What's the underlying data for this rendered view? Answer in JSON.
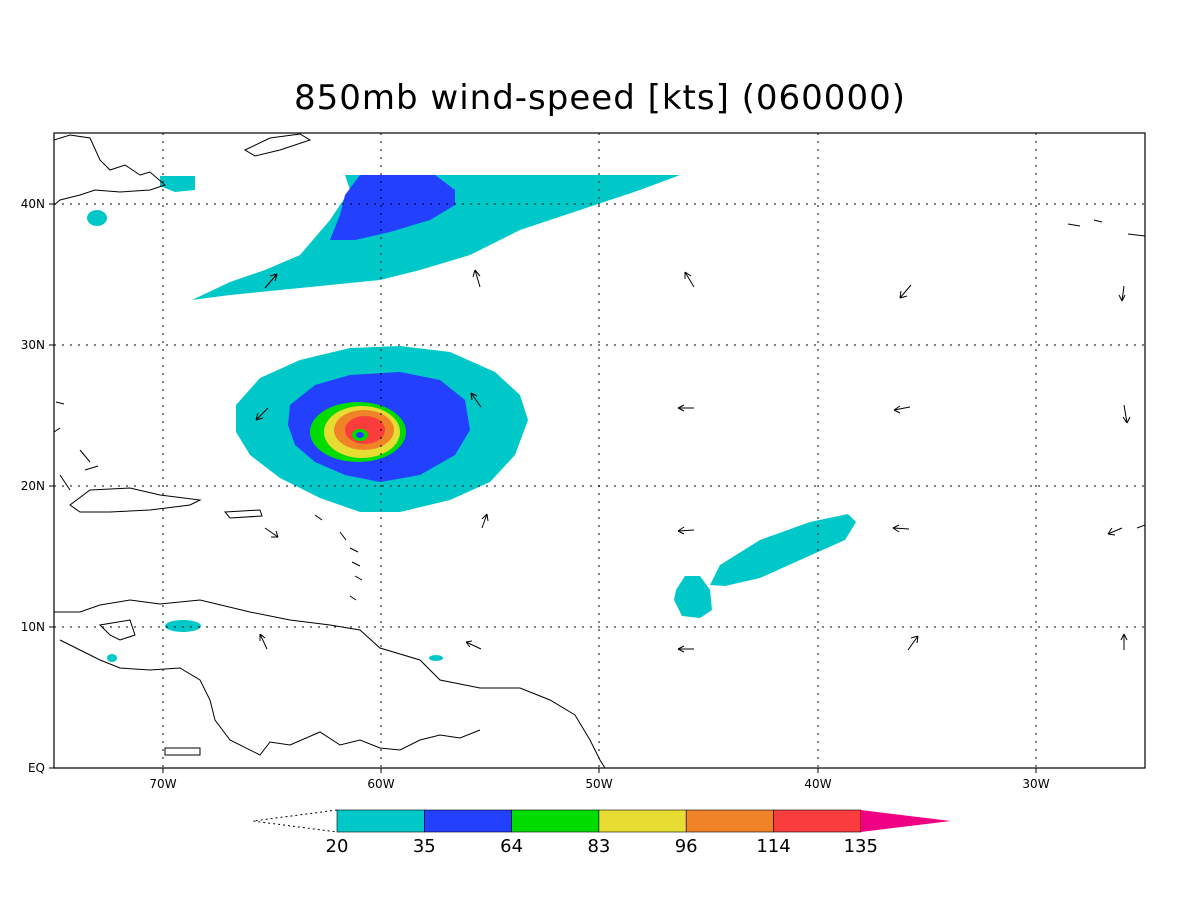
{
  "title": "850mb wind-speed [kts] (060000)",
  "axes": {
    "x_ticks": [
      "70W",
      "60W",
      "50W",
      "40W",
      "30W"
    ],
    "y_ticks": [
      "EQ",
      "10N",
      "20N",
      "30N",
      "40N"
    ]
  },
  "colorbar": {
    "labels": [
      "20",
      "35",
      "64",
      "83",
      "96",
      "114",
      "135"
    ],
    "colors": [
      "#00c8c8",
      "#2340ff",
      "#00dc00",
      "#e6dc32",
      "#f08228",
      "#fa3c3c",
      "#f00082"
    ]
  },
  "map": {
    "lon_range": [
      -75,
      -25
    ],
    "lat_range": [
      0,
      45
    ],
    "features": [
      "coastlines",
      "wind-vectors",
      "wind-speed-shading"
    ]
  }
}
